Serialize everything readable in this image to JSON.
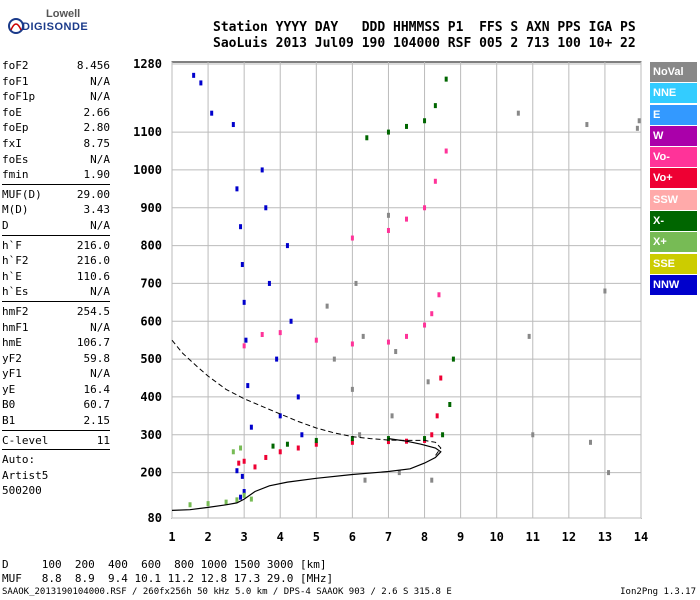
{
  "logo": {
    "line1": "Lowell",
    "line2": "DIGISONDE"
  },
  "header": {
    "line1": "Station YYYY DAY   DDD HHMMSS P1  FFS S AXN PPS IGA PS",
    "line2": "SaoLuis 2013 Jul09 190 104000 RSF 005 2 713 100 10+ 22"
  },
  "params": [
    {
      "label": "foF2",
      "value": "8.456"
    },
    {
      "label": "foF1",
      "value": "N/A"
    },
    {
      "label": "foF1p",
      "value": "N/A"
    },
    {
      "label": "foE",
      "value": "2.66"
    },
    {
      "label": "foEp",
      "value": "2.80"
    },
    {
      "label": "fxI",
      "value": "8.75"
    },
    {
      "label": "foEs",
      "value": "N/A"
    },
    {
      "label": "fmin",
      "value": "1.90"
    },
    {
      "label": "MUF(D)",
      "value": "29.00"
    },
    {
      "label": "M(D)",
      "value": "3.43"
    },
    {
      "label": "D",
      "value": "N/A"
    },
    {
      "label": "h`F",
      "value": "216.0"
    },
    {
      "label": "h`F2",
      "value": "216.0"
    },
    {
      "label": "h`E",
      "value": "110.6"
    },
    {
      "label": "h`Es",
      "value": "N/A"
    },
    {
      "label": "hmF2",
      "value": "254.5"
    },
    {
      "label": "hmF1",
      "value": "N/A"
    },
    {
      "label": "hmE",
      "value": "106.7"
    },
    {
      "label": "yF2",
      "value": "59.8"
    },
    {
      "label": "yF1",
      "value": "N/A"
    },
    {
      "label": "yE",
      "value": "16.4"
    },
    {
      "label": "B0",
      "value": "60.7"
    },
    {
      "label": "B1",
      "value": "2.15"
    },
    {
      "label": "C-level",
      "value": "11"
    }
  ],
  "auto": {
    "line1": "Auto:",
    "line2": "Artist5",
    "line3": "500200"
  },
  "legend": [
    {
      "label": "NoVal",
      "color": "#888888"
    },
    {
      "label": "NNE",
      "color": "#33ccff"
    },
    {
      "label": "E",
      "color": "#3399ff"
    },
    {
      "label": "W",
      "color": "#aa00aa"
    },
    {
      "label": "Vo-",
      "color": "#ff3399"
    },
    {
      "label": "Vo+",
      "color": "#ee0033"
    },
    {
      "label": "SSW",
      "color": "#ffaaaa"
    },
    {
      "label": "X-",
      "color": "#006600"
    },
    {
      "label": "X+",
      "color": "#77bb55"
    },
    {
      "label": "SSE",
      "color": "#cccc00"
    },
    {
      "label": "NNW",
      "color": "#0000cc"
    }
  ],
  "dmuf": {
    "d_line": "D     100  200  400  600  800 1000 1500 3000 [km]",
    "muf_line": "MUF   8.8  8.9  9.4 10.1 11.2 12.8 17.3 29.0 [MHz]"
  },
  "footer": {
    "text": "SAAOK_2013190104000.RSF / 260fx256h 50 kHz 5.0 km / DPS-4 SAAOK 903 / 2.6 S 315.8 E",
    "version": "Ion2Png 1.3.17"
  },
  "chart_data": {
    "type": "scatter",
    "xlim": [
      1,
      14
    ],
    "ylim": [
      80,
      1280
    ],
    "x_ticks": [
      "1",
      "2",
      "3",
      "4",
      "5",
      "6",
      "7",
      "8",
      "9",
      "10",
      "11",
      "12",
      "13",
      "14"
    ],
    "y_ticks": [
      "80",
      "200",
      "300",
      "400",
      "500",
      "600",
      "700",
      "800",
      "900",
      "1000",
      "1100",
      "1280"
    ],
    "grid": true,
    "series": [
      {
        "name": "Vo+",
        "color": "#ee0033",
        "points": [
          [
            2.85,
            225
          ],
          [
            3.0,
            230
          ],
          [
            3.3,
            215
          ],
          [
            3.6,
            240
          ],
          [
            4.0,
            255
          ],
          [
            4.5,
            265
          ],
          [
            5.0,
            275
          ],
          [
            6.0,
            280
          ],
          [
            7.0,
            282
          ],
          [
            7.5,
            283
          ],
          [
            8.0,
            285
          ],
          [
            8.2,
            300
          ],
          [
            8.35,
            350
          ],
          [
            8.45,
            450
          ]
        ]
      },
      {
        "name": "X-",
        "color": "#006600",
        "points": [
          [
            3.8,
            270
          ],
          [
            4.2,
            275
          ],
          [
            5.0,
            285
          ],
          [
            6.0,
            290
          ],
          [
            7.0,
            290
          ],
          [
            8.0,
            290
          ],
          [
            8.5,
            300
          ],
          [
            8.7,
            380
          ],
          [
            8.8,
            500
          ]
        ]
      },
      {
        "name": "Vo-",
        "color": "#ff3399",
        "points": [
          [
            3.0,
            535
          ],
          [
            3.5,
            565
          ],
          [
            4.0,
            570
          ],
          [
            5.0,
            550
          ],
          [
            6.0,
            540
          ],
          [
            7.0,
            545
          ],
          [
            7.5,
            560
          ],
          [
            8.0,
            590
          ],
          [
            8.2,
            620
          ],
          [
            8.4,
            670
          ]
        ]
      },
      {
        "name": "Vo-",
        "color": "#ff3399",
        "points": [
          [
            6.0,
            820
          ],
          [
            7.0,
            840
          ],
          [
            7.5,
            870
          ],
          [
            8.0,
            900
          ],
          [
            8.3,
            970
          ],
          [
            8.6,
            1050
          ]
        ]
      },
      {
        "name": "X-",
        "color": "#006600",
        "points": [
          [
            6.4,
            1085
          ],
          [
            7.0,
            1100
          ],
          [
            7.5,
            1115
          ],
          [
            8.0,
            1130
          ],
          [
            8.3,
            1170
          ],
          [
            8.6,
            1240
          ]
        ]
      },
      {
        "name": "NNW",
        "color": "#0000cc",
        "points": [
          [
            1.6,
            1250
          ],
          [
            1.8,
            1230
          ],
          [
            2.1,
            1150
          ],
          [
            2.7,
            1120
          ],
          [
            2.8,
            950
          ],
          [
            2.9,
            850
          ],
          [
            2.95,
            750
          ],
          [
            3.0,
            650
          ],
          [
            3.05,
            550
          ],
          [
            3.1,
            430
          ],
          [
            3.2,
            320
          ],
          [
            3.5,
            1000
          ],
          [
            3.6,
            900
          ],
          [
            3.7,
            700
          ],
          [
            3.9,
            500
          ],
          [
            4.0,
            350
          ],
          [
            4.2,
            800
          ],
          [
            4.3,
            600
          ],
          [
            4.5,
            400
          ],
          [
            4.6,
            300
          ],
          [
            2.8,
            205
          ],
          [
            2.95,
            190
          ],
          [
            2.9,
            135
          ],
          [
            3.0,
            150
          ]
        ]
      },
      {
        "name": "X+",
        "color": "#77bb55",
        "points": [
          [
            1.5,
            115
          ],
          [
            2.0,
            118
          ],
          [
            2.5,
            122
          ],
          [
            2.8,
            128
          ],
          [
            3.0,
            140
          ],
          [
            3.2,
            130
          ],
          [
            2.7,
            255
          ],
          [
            2.9,
            265
          ]
        ]
      },
      {
        "name": "NoVal",
        "color": "#888888",
        "points": [
          [
            5.3,
            640
          ],
          [
            5.5,
            500
          ],
          [
            6.0,
            420
          ],
          [
            6.1,
            700
          ],
          [
            6.2,
            300
          ],
          [
            6.3,
            560
          ],
          [
            6.35,
            180
          ],
          [
            7.0,
            880
          ],
          [
            7.1,
            350
          ],
          [
            7.2,
            520
          ],
          [
            7.3,
            200
          ],
          [
            8.1,
            440
          ],
          [
            8.2,
            180
          ],
          [
            10.6,
            1150
          ],
          [
            10.9,
            560
          ],
          [
            11.0,
            300
          ],
          [
            12.5,
            1120
          ],
          [
            12.6,
            280
          ],
          [
            13.0,
            680
          ],
          [
            13.1,
            200
          ],
          [
            13.9,
            1110
          ],
          [
            13.95,
            1130
          ]
        ]
      }
    ],
    "profile_curve": [
      [
        1.0,
        100
      ],
      [
        1.5,
        102
      ],
      [
        2.0,
        108
      ],
      [
        2.5,
        115
      ],
      [
        2.8,
        120
      ],
      [
        3.0,
        130
      ],
      [
        3.3,
        150
      ],
      [
        3.7,
        165
      ],
      [
        4.2,
        175
      ],
      [
        5.0,
        185
      ],
      [
        6.0,
        195
      ],
      [
        7.0,
        203
      ],
      [
        7.6,
        210
      ],
      [
        8.0,
        225
      ],
      [
        8.3,
        240
      ],
      [
        8.45,
        255
      ],
      [
        8.3,
        265
      ],
      [
        7.9,
        275
      ],
      [
        7.5,
        283
      ],
      [
        7.0,
        290
      ]
    ],
    "dashed_curve": [
      [
        1.0,
        550
      ],
      [
        1.3,
        515
      ],
      [
        1.7,
        480
      ],
      [
        2.0,
        455
      ],
      [
        2.5,
        420
      ],
      [
        3.0,
        395
      ],
      [
        3.5,
        375
      ],
      [
        4.0,
        355
      ],
      [
        4.5,
        335
      ],
      [
        5.0,
        318
      ],
      [
        5.5,
        305
      ],
      [
        6.0,
        295
      ],
      [
        6.5,
        290
      ],
      [
        7.0,
        286
      ],
      [
        7.5,
        285
      ],
      [
        8.0,
        285
      ],
      [
        8.3,
        280
      ],
      [
        8.45,
        265
      ],
      [
        8.3,
        245
      ]
    ]
  }
}
